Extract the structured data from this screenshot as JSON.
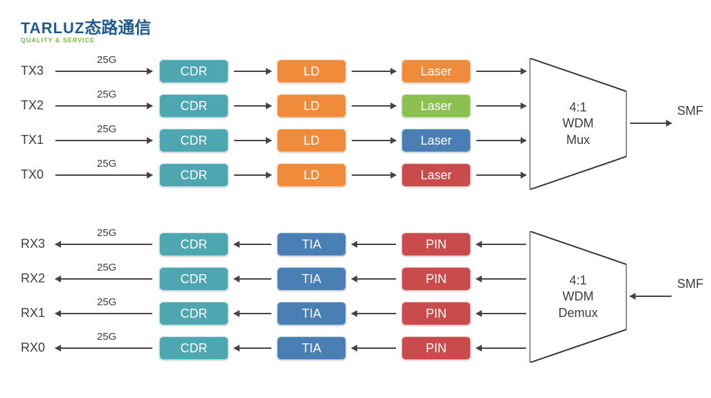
{
  "logo": {
    "en": "TARLUZ",
    "cn": "态路通信",
    "sub": "QUALITY & SERVICE"
  },
  "colors": {
    "teal": "#4ca7b0",
    "orange": "#f08b3c",
    "green": "#8cc152",
    "blue": "#4a7fb5",
    "red": "#c94b4b",
    "trap_stroke": "#333333",
    "text": "#3c3c3c"
  },
  "tx": {
    "rows": [
      {
        "io": "TX3",
        "rate": "25G",
        "cdr": "CDR",
        "mid": "LD",
        "end": "Laser",
        "end_color": "orange"
      },
      {
        "io": "TX2",
        "rate": "25G",
        "cdr": "CDR",
        "mid": "LD",
        "end": "Laser",
        "end_color": "green"
      },
      {
        "io": "TX1",
        "rate": "25G",
        "cdr": "CDR",
        "mid": "LD",
        "end": "Laser",
        "end_color": "blue"
      },
      {
        "io": "TX0",
        "rate": "25G",
        "cdr": "CDR",
        "mid": "LD",
        "end": "Laser",
        "end_color": "red"
      }
    ],
    "cdr_color": "teal",
    "mid_color": "orange",
    "mux_lines": [
      "4:1",
      "WDM",
      "Mux"
    ],
    "out": "SMF"
  },
  "rx": {
    "rows": [
      {
        "io": "RX3",
        "rate": "25G",
        "cdr": "CDR",
        "mid": "TIA",
        "end": "PIN"
      },
      {
        "io": "RX2",
        "rate": "25G",
        "cdr": "CDR",
        "mid": "TIA",
        "end": "PIN"
      },
      {
        "io": "RX1",
        "rate": "25G",
        "cdr": "CDR",
        "mid": "TIA",
        "end": "PIN"
      },
      {
        "io": "RX0",
        "rate": "25G",
        "cdr": "CDR",
        "mid": "TIA",
        "end": "PIN"
      }
    ],
    "cdr_color": "teal",
    "mid_color": "blue",
    "end_color": "red",
    "mux_lines": [
      "4:1",
      "WDM",
      "Demux"
    ],
    "out": "SMF"
  }
}
